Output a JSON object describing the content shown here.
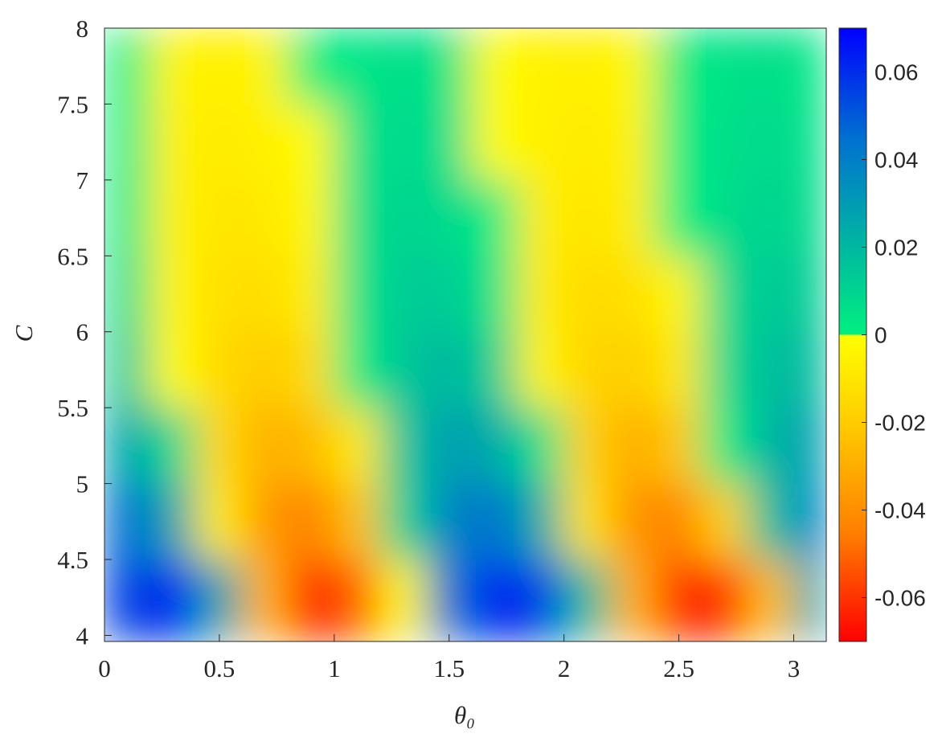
{
  "chart_data": {
    "type": "heatmap",
    "xlabel": "θ₀",
    "ylabel": "C",
    "x": [
      0.1,
      0.3,
      0.5,
      0.7,
      0.9,
      1.1,
      1.3,
      1.5,
      1.7,
      1.9,
      2.1,
      2.3,
      2.5,
      2.7,
      2.9,
      3.1
    ],
    "y": [
      4.25,
      4.75,
      5.25,
      5.75,
      6.25,
      6.75,
      7.25,
      7.75
    ],
    "values": [
      [
        0.055,
        0.062,
        0.027,
        -0.028,
        -0.064,
        -0.051,
        -0.002,
        0.043,
        0.064,
        0.055,
        0.018,
        -0.029,
        -0.061,
        -0.06,
        -0.024,
        0.027
      ],
      [
        0.045,
        0.027,
        -0.007,
        -0.037,
        -0.044,
        -0.024,
        0.01,
        0.038,
        0.044,
        0.024,
        -0.011,
        -0.039,
        -0.043,
        -0.018,
        0.017,
        0.041
      ],
      [
        0.026,
        0.008,
        -0.015,
        -0.029,
        -0.026,
        -0.008,
        0.015,
        0.029,
        0.025,
        0.005,
        -0.018,
        -0.03,
        -0.022,
        0.001,
        0.021,
        0.03
      ],
      [
        0.013,
        -0.001,
        -0.015,
        -0.02,
        -0.014,
        0.001,
        0.015,
        0.02,
        0.012,
        -0.004,
        -0.017,
        -0.019,
        -0.009,
        0.007,
        0.018,
        0.019
      ],
      [
        0.006,
        -0.004,
        -0.012,
        -0.013,
        -0.007,
        0.004,
        0.013,
        0.013,
        0.004,
        -0.007,
        -0.014,
        -0.012,
        -0.003,
        0.008,
        0.014,
        0.012
      ],
      [
        0.002,
        -0.005,
        -0.01,
        -0.009,
        -0.003,
        0.005,
        0.01,
        0.008,
        0.001,
        -0.007,
        -0.01,
        -0.007,
        0.0,
        0.007,
        0.01,
        0.007
      ],
      [
        0.001,
        -0.005,
        -0.008,
        -0.006,
        -0.001,
        0.005,
        0.008,
        0.006,
        -0.001,
        -0.006,
        -0.008,
        -0.005,
        0.001,
        0.006,
        0.008,
        0.005
      ],
      [
        0.0,
        -0.004,
        -0.006,
        -0.004,
        0.0,
        0.004,
        0.006,
        0.004,
        -0.001,
        -0.005,
        -0.006,
        -0.003,
        0.001,
        0.005,
        0.006,
        0.003
      ]
    ],
    "xlim": [
      0,
      3.1416
    ],
    "xticks": [
      0,
      0.5,
      1,
      1.5,
      2,
      2.5,
      3
    ],
    "ylim": [
      3.96,
      8
    ],
    "yticks": [
      4,
      4.5,
      5,
      5.5,
      6,
      6.5,
      7,
      7.5,
      8
    ],
    "zlim": [
      -0.07,
      0.07
    ],
    "zticks": [
      -0.06,
      -0.04,
      -0.02,
      0,
      0.02,
      0.04,
      0.06
    ],
    "colorscale": [
      [
        -0.07,
        "#ff0000"
      ],
      [
        -0.045,
        "#ff8000"
      ],
      [
        -0.02,
        "#ffcc00"
      ],
      [
        0,
        "#ffff00"
      ],
      [
        0,
        "#00f080"
      ],
      [
        0.02,
        "#00b8a0"
      ],
      [
        0.045,
        "#0070d0"
      ],
      [
        0.07,
        "#0000ff"
      ]
    ]
  }
}
